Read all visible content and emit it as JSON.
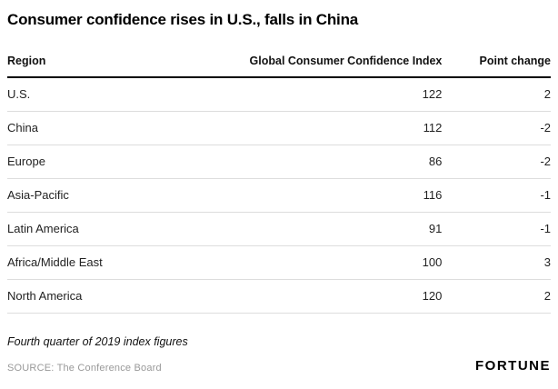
{
  "title": "Consumer confidence rises in U.S., falls in China",
  "chart_data": {
    "type": "table",
    "title": "Consumer confidence rises in U.S., falls in China",
    "columns": [
      "Region",
      "Global Consumer Confidence Index",
      "Point change"
    ],
    "rows": [
      [
        "U.S.",
        122,
        2
      ],
      [
        "China",
        112,
        -2
      ],
      [
        "Europe",
        86,
        -2
      ],
      [
        "Asia-Pacific",
        116,
        -1
      ],
      [
        "Latin America",
        91,
        -1
      ],
      [
        "Africa/Middle East",
        100,
        3
      ],
      [
        "North America",
        120,
        2
      ]
    ],
    "note": "Fourth quarter of 2019 index figures",
    "source": "SOURCE: The Conference Board"
  },
  "footer": {
    "note": "Fourth quarter of 2019 index figures",
    "source": "SOURCE: The Conference Board",
    "brand": "FORTUNE"
  },
  "colors": {
    "header_rule": "#000000",
    "row_rule": "#dddddd",
    "source_text": "#999999"
  }
}
